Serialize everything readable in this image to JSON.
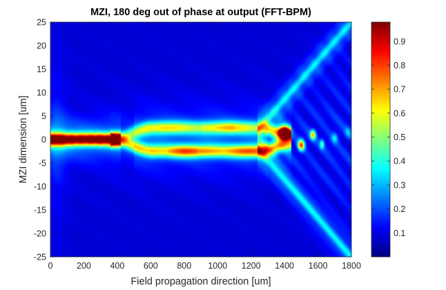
{
  "chart_data": {
    "type": "heatmap",
    "title": "MZI, 180 deg out of phase at output (FFT-BPM)",
    "xlabel": "Field propagation direction [um]",
    "ylabel": "MZI dimension [um]",
    "xlim": [
      0,
      1800
    ],
    "ylim": [
      -25,
      25
    ],
    "xticks": [
      "0",
      "200",
      "400",
      "600",
      "800",
      "1000",
      "1200",
      "1400",
      "1600",
      "1800"
    ],
    "xtick_values": [
      0,
      200,
      400,
      600,
      800,
      1000,
      1200,
      1400,
      1600,
      1800
    ],
    "yticks": [
      "25",
      "20",
      "15",
      "10",
      "5",
      "0",
      "-5",
      "-10",
      "-15",
      "-20",
      "-25"
    ],
    "ytick_values": [
      25,
      20,
      15,
      10,
      5,
      0,
      -5,
      -10,
      -15,
      -20,
      -25
    ],
    "colorbar": {
      "colormap": "jet",
      "range": [
        0,
        0.98
      ],
      "ticks": [
        "0.1",
        "0.2",
        "0.3",
        "0.4",
        "0.5",
        "0.6",
        "0.7",
        "0.8",
        "0.9"
      ],
      "tick_values": [
        0.1,
        0.2,
        0.3,
        0.4,
        0.5,
        0.6,
        0.7,
        0.8,
        0.9
      ]
    },
    "field_features": {
      "input_waveguide": {
        "x_range": [
          0,
          360
        ],
        "y_center": 0,
        "peak": 0.95
      },
      "splitter_region": {
        "x_range": [
          360,
          600
        ]
      },
      "upper_arm": {
        "x_range": [
          600,
          1260
        ],
        "y_center": 2.5,
        "peak": 0.55
      },
      "lower_arm": {
        "x_range": [
          600,
          1260
        ],
        "y_center": -2.5,
        "peak": 0.7
      },
      "combiner_hotspots": [
        {
          "x": 1400,
          "y": 1.5,
          "value": 0.82
        },
        {
          "x": 1500,
          "y": -1.2,
          "value": 0.75
        },
        {
          "x": 1570,
          "y": 1.0,
          "value": 0.6
        },
        {
          "x": 1620,
          "y": -1.0,
          "value": 0.4
        }
      ],
      "radiation_fan": {
        "x_range": [
          1250,
          1800
        ],
        "y_spread_at_end": 25
      }
    }
  }
}
